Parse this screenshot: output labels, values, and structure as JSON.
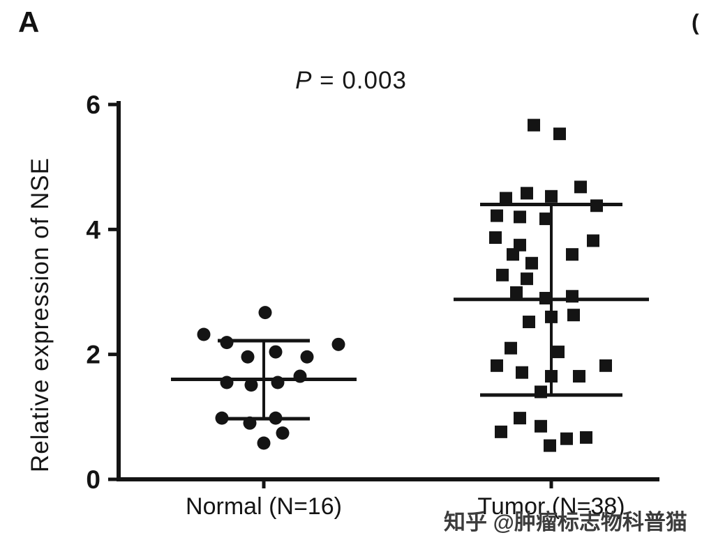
{
  "panel": {
    "label": "A",
    "cropped_right_mark": "("
  },
  "watermark": {
    "text": "知乎 @肿瘤标志物科普猫"
  },
  "chart_data": {
    "type": "scatter",
    "title": "",
    "annotation": {
      "symbol": "P",
      "rest": " = 0.003",
      "text": "P = 0.003"
    },
    "ylabel": "Relative expression of NSE",
    "xlabel": "",
    "ylim": [
      0,
      6
    ],
    "yticks": [
      0,
      2,
      4,
      6
    ],
    "legend": "none",
    "grid": false,
    "groups": [
      {
        "label": "Normal (N=16)",
        "n": 16,
        "marker": "circle",
        "mean": 1.6,
        "whisker_low": 0.97,
        "whisker_high": 2.22,
        "points": [
          [
            -86,
            2.32
          ],
          [
            2,
            2.67
          ],
          [
            -53,
            2.19
          ],
          [
            -23,
            1.96
          ],
          [
            17,
            2.04
          ],
          [
            62,
            1.96
          ],
          [
            107,
            2.16
          ],
          [
            -53,
            1.55
          ],
          [
            -18,
            1.51
          ],
          [
            20,
            1.55
          ],
          [
            52,
            1.65
          ],
          [
            -60,
            0.98
          ],
          [
            -20,
            0.9
          ],
          [
            17,
            0.98
          ],
          [
            0,
            0.58
          ],
          [
            27,
            0.74
          ]
        ]
      },
      {
        "label": "Tumor (N=38)",
        "n": 38,
        "marker": "square",
        "mean": 2.88,
        "whisker_low": 1.35,
        "whisker_high": 4.4,
        "points": [
          [
            -25,
            5.67
          ],
          [
            12,
            5.53
          ],
          [
            -65,
            4.5
          ],
          [
            -35,
            4.58
          ],
          [
            0,
            4.53
          ],
          [
            42,
            4.68
          ],
          [
            -78,
            4.22
          ],
          [
            -45,
            4.2
          ],
          [
            -8,
            4.17
          ],
          [
            65,
            4.38
          ],
          [
            -80,
            3.87
          ],
          [
            -45,
            3.75
          ],
          [
            60,
            3.82
          ],
          [
            -55,
            3.6
          ],
          [
            -28,
            3.46
          ],
          [
            30,
            3.6
          ],
          [
            -70,
            3.27
          ],
          [
            -35,
            3.21
          ],
          [
            -50,
            2.99
          ],
          [
            -8,
            2.9
          ],
          [
            30,
            2.93
          ],
          [
            -32,
            2.52
          ],
          [
            0,
            2.6
          ],
          [
            32,
            2.63
          ],
          [
            -58,
            2.1
          ],
          [
            10,
            2.04
          ],
          [
            -78,
            1.82
          ],
          [
            -42,
            1.71
          ],
          [
            0,
            1.65
          ],
          [
            40,
            1.65
          ],
          [
            78,
            1.82
          ],
          [
            -15,
            1.4
          ],
          [
            -72,
            0.76
          ],
          [
            -45,
            0.98
          ],
          [
            -15,
            0.85
          ],
          [
            -2,
            0.54
          ],
          [
            22,
            0.65
          ],
          [
            50,
            0.67
          ]
        ]
      }
    ]
  }
}
